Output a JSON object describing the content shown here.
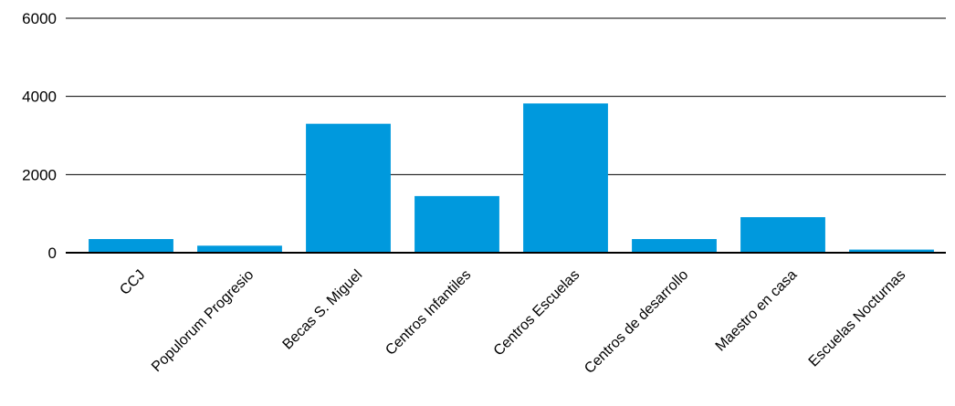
{
  "chart_data": {
    "type": "bar",
    "categories": [
      "CCJ",
      "Populorum Progresio",
      "Becas S. Miguel",
      "Centros Infantiles",
      "Centros Escuelas",
      "Centros de desarrollo",
      "Maestro en casa",
      "Escuelas Nocturnas"
    ],
    "values": [
      350,
      180,
      3300,
      1450,
      3820,
      350,
      910,
      80
    ],
    "title": "",
    "xlabel": "",
    "ylabel": "",
    "ylim": [
      0,
      6000
    ],
    "yticks": [
      0,
      2000,
      4000,
      6000
    ],
    "grid": true,
    "legend": "none",
    "bar_color": "#0099dd"
  }
}
